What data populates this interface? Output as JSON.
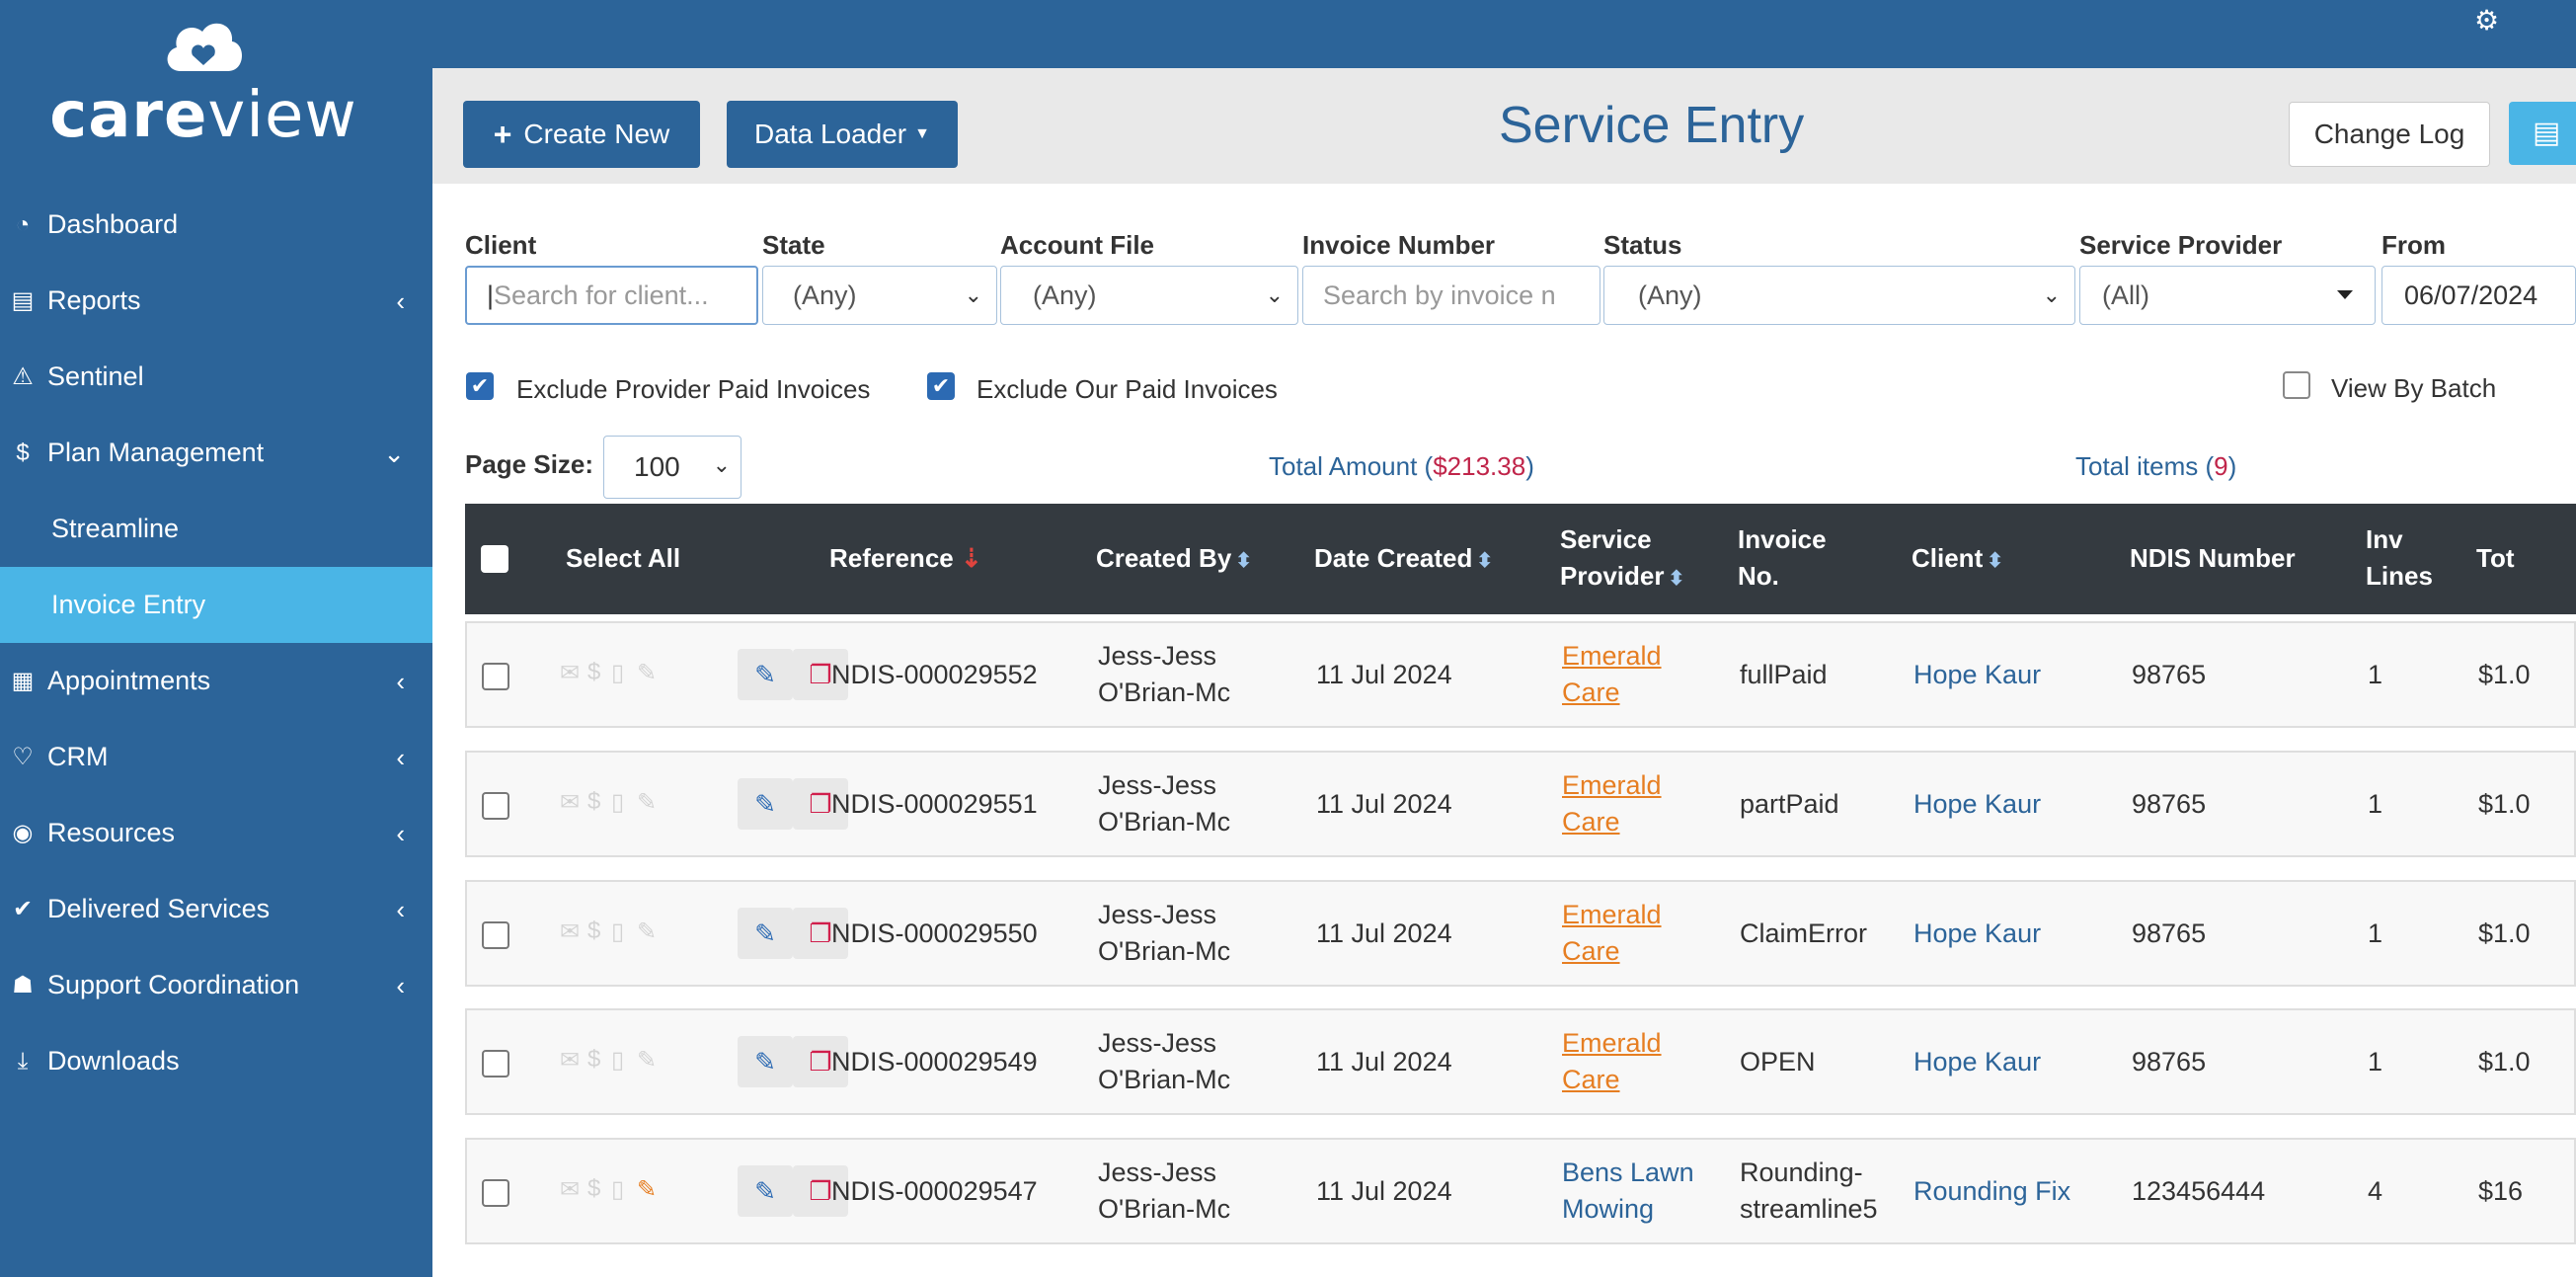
{
  "brand": {
    "name_bold": "care",
    "name_light": "view"
  },
  "sidebar": {
    "items": [
      {
        "label": "Dashboard",
        "icon": "tachometer-icon",
        "glyph": "◔",
        "chevron": ""
      },
      {
        "label": "Reports",
        "icon": "excel-file-icon",
        "glyph": "▤",
        "chevron": "‹"
      },
      {
        "label": "Sentinel",
        "icon": "warning-icon",
        "glyph": "⚠",
        "chevron": ""
      },
      {
        "label": "Plan Management",
        "icon": "dollar-icon",
        "glyph": "$",
        "chevron": "⌄"
      },
      {
        "label": "Streamline",
        "sub": true
      },
      {
        "label": "Invoice Entry",
        "sub": true,
        "active": true
      },
      {
        "label": "Appointments",
        "icon": "calendar-icon",
        "glyph": "▦",
        "chevron": "‹"
      },
      {
        "label": "CRM",
        "icon": "heart-icon",
        "glyph": "♡",
        "chevron": "‹"
      },
      {
        "label": "Resources",
        "icon": "user-circle-icon",
        "glyph": "◉",
        "chevron": "‹"
      },
      {
        "label": "Delivered Services",
        "icon": "check-icon",
        "glyph": "✔",
        "chevron": "‹"
      },
      {
        "label": "Support Coordination",
        "icon": "user-cog-icon",
        "glyph": "☗",
        "chevron": "‹"
      },
      {
        "label": "Downloads",
        "icon": "download-icon",
        "glyph": "⤓",
        "chevron": ""
      }
    ]
  },
  "header": {
    "create_new": "Create New",
    "data_loader": "Data Loader",
    "title": "Service Entry",
    "change_log": "Change Log"
  },
  "filters": {
    "client_label": "Client",
    "client_placeholder": "Search for client...",
    "state_label": "State",
    "state_value": "(Any)",
    "account_file_label": "Account File",
    "account_file_value": "(Any)",
    "invoice_number_label": "Invoice Number",
    "invoice_number_placeholder": "Search by invoice n",
    "status_label": "Status",
    "status_value": "(Any)",
    "service_provider_label": "Service Provider",
    "service_provider_value": "(All)",
    "from_label": "From",
    "from_value": "06/07/2024",
    "exclude_provider_paid": "Exclude Provider Paid Invoices",
    "exclude_our_paid": "Exclude Our Paid Invoices",
    "view_by_batch": "View By Batch"
  },
  "summary": {
    "page_size_label": "Page Size:",
    "page_size_value": "100",
    "total_amount_label": "Total Amount (",
    "total_amount_value": "$213.38",
    "total_items_label": "Total items (",
    "total_items_value": "9",
    "close_paren": ")"
  },
  "table": {
    "headers": {
      "select_all": "Select All",
      "reference": "Reference",
      "created_by": "Created By",
      "date_created": "Date Created",
      "service_provider_1": "Service",
      "service_provider_2": "Provider",
      "invoice_no_1": "Invoice",
      "invoice_no_2": "No.",
      "client": "Client",
      "ndis_number": "NDIS Number",
      "inv_lines_1": "Inv",
      "inv_lines_2": "Lines",
      "total": "Tot"
    },
    "rows": [
      {
        "reference": "NDIS-000029552",
        "created_by_1": "Jess-Jess",
        "created_by_2": "O'Brian-Mc",
        "date_created": "11 Jul 2024",
        "provider_1": "Emerald",
        "provider_2": "Care",
        "provider_color": "#e67e22",
        "invoice_1": "fullPaid",
        "invoice_2": "",
        "client": "Hope Kaur",
        "ndis": "98765",
        "lines": "1",
        "total": "$1.0",
        "has_attachment": false
      },
      {
        "reference": "NDIS-000029551",
        "created_by_1": "Jess-Jess",
        "created_by_2": "O'Brian-Mc",
        "date_created": "11 Jul 2024",
        "provider_1": "Emerald",
        "provider_2": "Care",
        "provider_color": "#e67e22",
        "invoice_1": "partPaid",
        "invoice_2": "",
        "client": "Hope Kaur",
        "ndis": "98765",
        "lines": "1",
        "total": "$1.0",
        "has_attachment": false
      },
      {
        "reference": "NDIS-000029550",
        "created_by_1": "Jess-Jess",
        "created_by_2": "O'Brian-Mc",
        "date_created": "11 Jul 2024",
        "provider_1": "Emerald",
        "provider_2": "Care",
        "provider_color": "#e67e22",
        "invoice_1": "ClaimError",
        "invoice_2": "",
        "client": "Hope Kaur",
        "ndis": "98765",
        "lines": "1",
        "total": "$1.0",
        "has_attachment": false
      },
      {
        "reference": "NDIS-000029549",
        "created_by_1": "Jess-Jess",
        "created_by_2": "O'Brian-Mc",
        "date_created": "11 Jul 2024",
        "provider_1": "Emerald",
        "provider_2": "Care",
        "provider_color": "#e67e22",
        "invoice_1": "OPEN",
        "invoice_2": "",
        "client": "Hope Kaur",
        "ndis": "98765",
        "lines": "1",
        "total": "$1.0",
        "has_attachment": false
      },
      {
        "reference": "NDIS-000029547",
        "created_by_1": "Jess-Jess",
        "created_by_2": "O'Brian-Mc",
        "date_created": "11 Jul 2024",
        "provider_1": "Bens Lawn",
        "provider_2": "Mowing",
        "provider_color": "#2c6499",
        "invoice_1": "Rounding-",
        "invoice_2": "streamline5",
        "client": "Rounding Fix",
        "ndis": "123456444",
        "lines": "4",
        "total": "$16",
        "has_attachment": true
      }
    ]
  },
  "colors": {
    "brand_blue": "#2c6499",
    "active_blue": "#4ab5e6",
    "header_dark": "#343a40",
    "accent_red": "#c0254a",
    "provider_orange": "#e67e22"
  }
}
